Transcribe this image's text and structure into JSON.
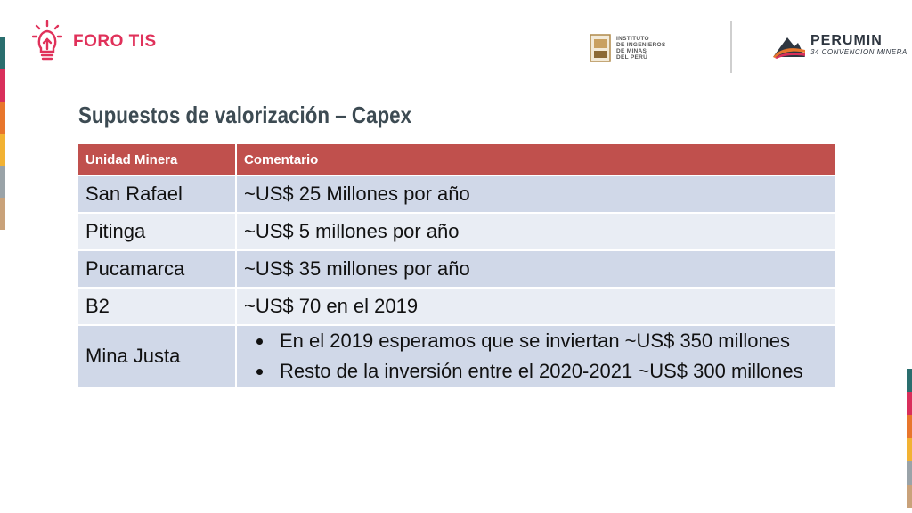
{
  "header": {
    "brand_name": "FORO TIS",
    "institute_lines": [
      "INSTITUTO",
      "DE INGENIEROS",
      "DE MINAS",
      "DEL PERÚ"
    ],
    "perumin_name": "PERUMIN",
    "perumin_sub": "34 CONVENCION MINERA"
  },
  "title": "Supuestos de valorización – Capex",
  "table": {
    "headers": [
      "Unidad Minera",
      "Comentario"
    ],
    "rows": [
      {
        "unit": "San Rafael",
        "comment": "~US$ 25 Millones por año"
      },
      {
        "unit": "Pitinga",
        "comment": "~US$ 5 millones por año"
      },
      {
        "unit": "Pucamarca",
        "comment": "~US$ 35 millones por año"
      },
      {
        "unit": "B2",
        "comment": "~US$ 70 en el 2019"
      },
      {
        "unit": "Mina Justa",
        "bullets": [
          "En el 2019 esperamos que se inviertan ~US$ 350 millones",
          "Resto de la inversión entre el 2020-2021 ~US$ 300 millones"
        ]
      }
    ]
  },
  "colors": {
    "brand": "#e0315a",
    "header_bg": "#c0504d",
    "row_dark": "#d0d8e8",
    "row_light": "#e9edf4",
    "title": "#3d4b53",
    "strip": [
      "#2a6e6e",
      "#d92f5b",
      "#e8762c",
      "#f2b233",
      "#9aa3a8",
      "#c9a27a"
    ]
  },
  "icons": [
    "lightbulb-icon",
    "institute-seal-icon",
    "perumin-mountain-icon"
  ]
}
